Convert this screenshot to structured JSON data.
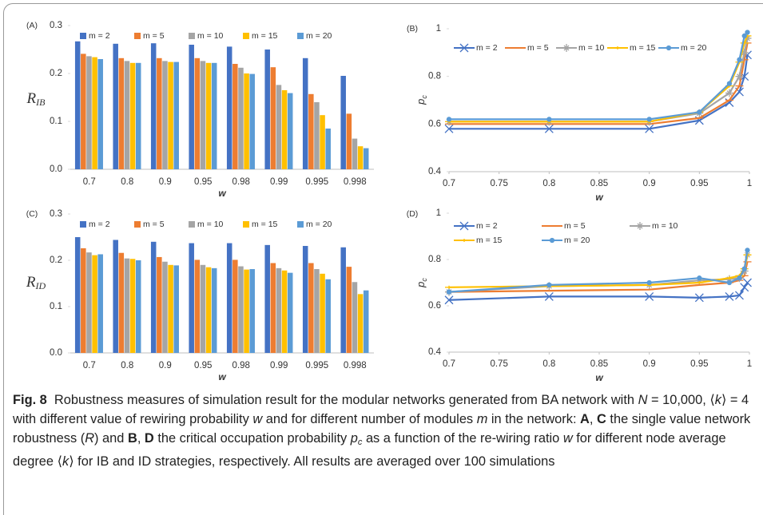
{
  "chart_data": [
    {
      "type": "bar",
      "panel_label": "(A)",
      "y_label": "R",
      "y_label_sub": "IB",
      "x_label": "w",
      "categories": [
        "0.7",
        "0.8",
        "0.9",
        "0.95",
        "0.98",
        "0.99",
        "0.995",
        "0.998"
      ],
      "ylim": [
        0,
        0.3
      ],
      "yticks": [
        {
          "value": 0,
          "label": "0.0"
        },
        0.1,
        0.2,
        0.3
      ],
      "series": [
        {
          "name": "m = 2",
          "color": "#4472c4",
          "values": [
            0.267,
            0.262,
            0.263,
            0.26,
            0.256,
            0.25,
            0.232,
            0.195
          ]
        },
        {
          "name": "m = 5",
          "color": "#ed7d31",
          "values": [
            0.241,
            0.232,
            0.232,
            0.232,
            0.22,
            0.213,
            0.157,
            0.116
          ]
        },
        {
          "name": "m = 10",
          "color": "#a5a5a5",
          "values": [
            0.236,
            0.226,
            0.226,
            0.226,
            0.212,
            0.176,
            0.14,
            0.064
          ]
        },
        {
          "name": "m = 15",
          "color": "#ffc000",
          "values": [
            0.234,
            0.222,
            0.224,
            0.222,
            0.2,
            0.165,
            0.113,
            0.048
          ]
        },
        {
          "name": "m = 20",
          "color": "#5b9bd5",
          "values": [
            0.23,
            0.222,
            0.224,
            0.222,
            0.199,
            0.159,
            0.085,
            0.044
          ]
        }
      ]
    },
    {
      "type": "line",
      "panel_label": "(B)",
      "y_label": "p",
      "y_label_sub": "c",
      "x_label": "w",
      "x": [
        0.7,
        0.8,
        0.9,
        0.95,
        0.98,
        0.99,
        0.995,
        0.998
      ],
      "xlim": [
        0.7,
        1
      ],
      "xticks": [
        0.7,
        0.75,
        0.8,
        0.85,
        0.9,
        0.95,
        1
      ],
      "ylim": [
        0.4,
        1
      ],
      "yticks": [
        0.4,
        0.6,
        0.8,
        1
      ],
      "series": [
        {
          "name": "m = 2",
          "color": "#4472c4",
          "marker": "x",
          "values": [
            0.58,
            0.58,
            0.58,
            0.615,
            0.69,
            0.735,
            0.8,
            0.89
          ]
        },
        {
          "name": "m = 5",
          "color": "#ed7d31",
          "marker": "dash",
          "values": [
            0.6,
            0.6,
            0.6,
            0.625,
            0.7,
            0.76,
            0.87,
            0.94
          ]
        },
        {
          "name": "m = 10",
          "color": "#a5a5a5",
          "marker": "star",
          "values": [
            0.61,
            0.61,
            0.61,
            0.645,
            0.73,
            0.8,
            0.9,
            0.96
          ]
        },
        {
          "name": "m = 15",
          "color": "#ffc000",
          "marker": "plus",
          "values": [
            0.61,
            0.61,
            0.61,
            0.65,
            0.76,
            0.86,
            0.94,
            0.97
          ]
        },
        {
          "name": "m = 20",
          "color": "#5b9bd5",
          "marker": "circle",
          "values": [
            0.62,
            0.62,
            0.62,
            0.65,
            0.77,
            0.87,
            0.97,
            0.985
          ]
        }
      ]
    },
    {
      "type": "bar",
      "panel_label": "(C)",
      "y_label": "R",
      "y_label_sub": "ID",
      "x_label": "w",
      "categories": [
        "0.7",
        "0.8",
        "0.9",
        "0.95",
        "0.98",
        "0.99",
        "0.995",
        "0.998"
      ],
      "ylim": [
        0,
        0.3
      ],
      "yticks": [
        {
          "value": 0,
          "label": "0.0"
        },
        0.1,
        0.2,
        0.3
      ],
      "series": [
        {
          "name": "m = 2",
          "color": "#4472c4",
          "values": [
            0.25,
            0.244,
            0.24,
            0.237,
            0.237,
            0.233,
            0.231,
            0.228
          ]
        },
        {
          "name": "m = 5",
          "color": "#ed7d31",
          "values": [
            0.226,
            0.216,
            0.207,
            0.201,
            0.201,
            0.194,
            0.194,
            0.186
          ]
        },
        {
          "name": "m = 10",
          "color": "#a5a5a5",
          "values": [
            0.217,
            0.204,
            0.197,
            0.19,
            0.187,
            0.183,
            0.181,
            0.153
          ]
        },
        {
          "name": "m = 15",
          "color": "#ffc000",
          "values": [
            0.211,
            0.203,
            0.19,
            0.185,
            0.18,
            0.178,
            0.171,
            0.127
          ]
        },
        {
          "name": "m = 20",
          "color": "#5b9bd5",
          "values": [
            0.213,
            0.2,
            0.189,
            0.183,
            0.181,
            0.173,
            0.159,
            0.135
          ]
        }
      ]
    },
    {
      "type": "line",
      "panel_label": "(D)",
      "y_label": "p",
      "y_label_sub": "c",
      "x_label": "w",
      "x": [
        0.7,
        0.8,
        0.9,
        0.95,
        0.98,
        0.99,
        0.995,
        0.998
      ],
      "xlim": [
        0.7,
        1
      ],
      "xticks": [
        0.7,
        0.75,
        0.8,
        0.85,
        0.9,
        0.95,
        1
      ],
      "ylim": [
        0.4,
        1
      ],
      "yticks": [
        0.4,
        0.6,
        0.8,
        1
      ],
      "series": [
        {
          "name": "m = 2",
          "color": "#4472c4",
          "marker": "x",
          "values": [
            0.625,
            0.64,
            0.64,
            0.635,
            0.64,
            0.645,
            0.68,
            0.7
          ]
        },
        {
          "name": "m = 5",
          "color": "#ed7d31",
          "marker": "dash",
          "values": [
            0.66,
            0.665,
            0.67,
            0.69,
            0.7,
            0.71,
            0.73,
            0.79
          ]
        },
        {
          "name": "m = 10",
          "color": "#a5a5a5",
          "marker": "star",
          "values": [
            0.66,
            0.685,
            0.69,
            0.71,
            0.715,
            0.72,
            0.75,
            0.82
          ]
        },
        {
          "name": "m = 15",
          "color": "#ffc000",
          "marker": "plus",
          "values": [
            0.68,
            0.685,
            0.69,
            0.7,
            0.72,
            0.73,
            0.76,
            0.82
          ]
        },
        {
          "name": "m = 20",
          "color": "#5b9bd5",
          "marker": "circle",
          "values": [
            0.66,
            0.69,
            0.7,
            0.72,
            0.7,
            0.72,
            0.76,
            0.84
          ]
        }
      ]
    }
  ],
  "caption": [
    {
      "text": "Fig. 8",
      "style": "bold"
    },
    {
      "text": "  Robustness measures of simulation result for the modular networks generated from BA network with ",
      "style": "normal"
    },
    {
      "text": "N",
      "style": "italic"
    },
    {
      "text": " = 10,000, ⟨",
      "style": "normal"
    },
    {
      "text": "k",
      "style": "italic"
    },
    {
      "text": "⟩ = 4 with different value of rewiring probability ",
      "style": "normal"
    },
    {
      "text": "w",
      "style": "italic"
    },
    {
      "text": " and for different number of modules ",
      "style": "normal"
    },
    {
      "text": "m",
      "style": "italic"
    },
    {
      "text": " in the network: ",
      "style": "normal"
    },
    {
      "text": "A",
      "style": "bold"
    },
    {
      "text": ", ",
      "style": "normal"
    },
    {
      "text": "C",
      "style": "bold"
    },
    {
      "text": " the single value network robustness (",
      "style": "normal"
    },
    {
      "text": "R",
      "style": "italic"
    },
    {
      "text": ") and ",
      "style": "normal"
    },
    {
      "text": "B",
      "style": "bold"
    },
    {
      "text": ", ",
      "style": "normal"
    },
    {
      "text": "D",
      "style": "bold"
    },
    {
      "text": " the critical occupation probability ",
      "style": "normal"
    },
    {
      "text": "p",
      "style": "italic"
    },
    {
      "text": "c",
      "style": "sub"
    },
    {
      "text": " as a function of the re-wiring ratio ",
      "style": "normal"
    },
    {
      "text": "w",
      "style": "italic"
    },
    {
      "text": " for different node average degree ⟨",
      "style": "normal"
    },
    {
      "text": "k",
      "style": "italic"
    },
    {
      "text": "⟩ for IB and ID strategies, respectively. All results are averaged over 100 simulations",
      "style": "normal"
    }
  ]
}
